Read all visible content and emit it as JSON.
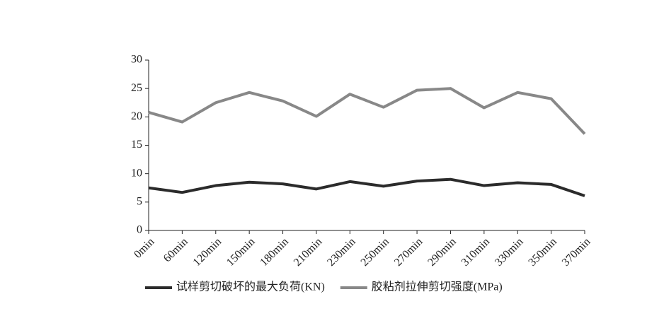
{
  "chart_data": {
    "type": "line",
    "categories": [
      "0min",
      "60min",
      "120min",
      "150min",
      "180min",
      "210min",
      "230min",
      "250min",
      "270min",
      "290min",
      "310min",
      "330min",
      "350min",
      "370min"
    ],
    "series": [
      {
        "name": "试样剪切破坏的最大负荷(KN)",
        "color": "#2b2b2b",
        "values": [
          7.5,
          6.7,
          7.9,
          8.5,
          8.2,
          7.3,
          8.6,
          7.8,
          8.7,
          9.0,
          7.9,
          8.4,
          8.1,
          6.1
        ]
      },
      {
        "name": "胶粘剂拉伸剪切强度(MPa)",
        "color": "#888888",
        "values": [
          20.8,
          19.1,
          22.5,
          24.3,
          22.8,
          20.1,
          24.0,
          21.7,
          24.7,
          25.0,
          21.6,
          24.3,
          23.2,
          17.0
        ]
      }
    ],
    "ylim": [
      0,
      30
    ],
    "yticks": [
      0,
      5,
      10,
      15,
      20,
      25,
      30
    ],
    "grid": false,
    "legend": "bottom"
  }
}
